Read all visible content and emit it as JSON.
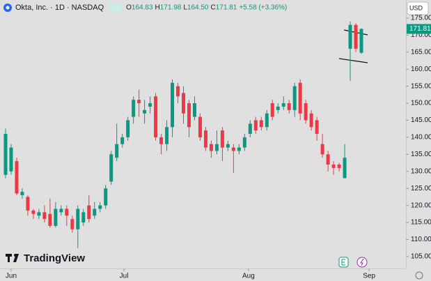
{
  "header": {
    "symbol": "Okta, Inc. · 1D · NASDAQ",
    "items": [
      {
        "label": "O",
        "value": "164.83"
      },
      {
        "label": "H",
        "value": "171.98"
      },
      {
        "label": "L",
        "value": "164.50"
      },
      {
        "label": "C",
        "value": "171.81"
      }
    ],
    "change": "+5.58 (+3.36%)",
    "currency": "USD",
    "brand": "TradingView"
  },
  "chart_data": {
    "type": "candlestick",
    "open": [
      129,
      130,
      133,
      123,
      122.5,
      118.5,
      117,
      118,
      117.5,
      114,
      118,
      119,
      116,
      113,
      115,
      120,
      117,
      119,
      120,
      127,
      134,
      138,
      140,
      146,
      151,
      147,
      149,
      152,
      140,
      138,
      143,
      155,
      153,
      150,
      146,
      146,
      142,
      138,
      136,
      142,
      137,
      137,
      136,
      137,
      141,
      145,
      145,
      143,
      150,
      148,
      149,
      150,
      148,
      156,
      150,
      147,
      145,
      138,
      135,
      132,
      132,
      128,
      166,
      173,
      164.83
    ],
    "high": [
      142.5,
      138,
      134,
      125,
      123,
      119,
      119,
      120,
      122,
      121,
      120,
      120,
      117,
      120,
      119,
      123,
      121,
      121,
      126,
      136,
      144,
      141,
      146,
      152,
      154,
      151,
      152,
      153,
      141,
      145,
      157,
      156,
      155,
      151,
      152,
      147,
      143,
      139,
      142,
      143,
      139,
      138,
      138,
      141,
      145,
      146,
      146,
      148,
      151,
      150,
      152,
      151,
      156,
      157,
      151,
      148,
      146,
      141,
      136,
      133,
      132.5,
      138,
      174,
      173.5,
      171.98
    ],
    "low": [
      128,
      129,
      123,
      122,
      117,
      116,
      116,
      115,
      113.5,
      113.5,
      117,
      114,
      112,
      107.5,
      114,
      115,
      116,
      118,
      119,
      126,
      133,
      137,
      139,
      144,
      146,
      144,
      147,
      139,
      135,
      136,
      140,
      150,
      144,
      140,
      145,
      139,
      136,
      134,
      135,
      133,
      136,
      129.5,
      135,
      136,
      140,
      141,
      142,
      142,
      145,
      147,
      148,
      147,
      146,
      145,
      144,
      142,
      139,
      134,
      130,
      129,
      130,
      128,
      156.5,
      165,
      164.5
    ],
    "close": [
      141,
      137,
      123.5,
      124,
      118.5,
      117.5,
      118,
      116,
      114,
      119,
      119,
      117,
      113,
      119,
      118,
      116,
      119,
      120,
      125,
      135,
      138,
      140,
      145,
      151,
      150,
      148,
      150,
      140,
      138,
      143,
      156,
      152,
      147,
      143,
      150,
      140,
      137,
      136,
      138,
      137,
      138,
      136,
      137,
      140,
      144,
      142,
      143,
      147,
      146,
      149,
      150,
      148,
      155,
      147,
      145,
      143,
      141,
      135,
      132,
      131,
      131,
      134,
      173,
      166,
      171.81
    ],
    "up_color": "#089981",
    "down_color": "#f23645",
    "ylim": [
      101.5,
      180.3
    ],
    "yticks": [
      {
        "value": 105,
        "label": "105.00"
      },
      {
        "value": 110,
        "label": "110.00"
      },
      {
        "value": 115,
        "label": "115.00"
      },
      {
        "value": 120,
        "label": "120.00"
      },
      {
        "value": 125,
        "label": "125.00"
      },
      {
        "value": 130,
        "label": "130.00"
      },
      {
        "value": 135,
        "label": "135.00"
      },
      {
        "value": 140,
        "label": "140.00"
      },
      {
        "value": 145,
        "label": "145.00"
      },
      {
        "value": 150,
        "label": "150.00"
      },
      {
        "value": 155,
        "label": "155.00"
      },
      {
        "value": 160,
        "label": "160.00"
      },
      {
        "value": 165,
        "label": "165.00"
      },
      {
        "value": 170,
        "label": "170.00"
      },
      {
        "value": 175,
        "label": "175.00"
      }
    ],
    "xticks": [
      {
        "value": 1,
        "label": "Jun"
      },
      {
        "value": 21.3,
        "label": "Jul"
      },
      {
        "value": 43.7,
        "label": "Aug"
      },
      {
        "value": 65.4,
        "label": "Sep"
      }
    ],
    "last_price": 171.81
  }
}
